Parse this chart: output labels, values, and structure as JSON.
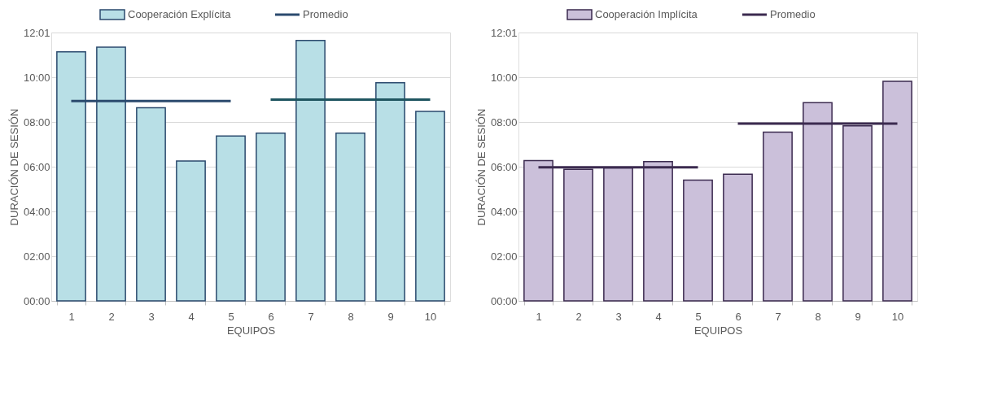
{
  "chart_data": [
    {
      "type": "bar",
      "xlabel": "EQUIPOS",
      "ylabel": "DURACIÓN DE SESIÓN",
      "categories": [
        "1",
        "2",
        "3",
        "4",
        "5",
        "6",
        "7",
        "8",
        "9",
        "10"
      ],
      "series": [
        {
          "name": "Cooperación Explícita",
          "color": "#b8dfe6",
          "values": [
            11.15,
            11.36,
            8.65,
            6.26,
            7.38,
            7.51,
            11.66,
            7.51,
            9.77,
            8.48
          ]
        },
        {
          "name": "Promedio",
          "type": "line",
          "color": "#2b4a6e",
          "values": [
            8.95,
            8.95,
            8.95,
            8.95,
            8.95,
            null,
            null,
            null,
            null,
            null
          ]
        },
        {
          "type": "line",
          "color": "#1f5560",
          "values": [
            null,
            null,
            null,
            null,
            null,
            9.01,
            9.01,
            9.01,
            9.01,
            9.01
          ]
        }
      ],
      "ylim": [
        0,
        12.0167
      ],
      "yticks": [
        {
          "value": 0,
          "label": "00:00"
        },
        {
          "value": 2,
          "label": "02:00"
        },
        {
          "value": 4,
          "label": "04:00"
        },
        {
          "value": 6,
          "label": "06:00"
        },
        {
          "value": 8,
          "label": "08:00"
        },
        {
          "value": 10,
          "label": "10:00"
        },
        {
          "value": 12.0167,
          "label": "12:01"
        }
      ],
      "grid": "y",
      "legend": "top"
    },
    {
      "type": "bar",
      "xlabel": "EQUIPOS",
      "ylabel": "DURACIÓN DE SESIÓN",
      "categories": [
        "1",
        "2",
        "3",
        "4",
        "5",
        "6",
        "7",
        "8",
        "9",
        "10"
      ],
      "series": [
        {
          "name": "Cooperación Implícita",
          "color": "#cbc0da",
          "values": [
            6.28,
            5.89,
            5.95,
            6.24,
            5.41,
            5.67,
            7.56,
            8.88,
            7.84,
            9.83
          ]
        },
        {
          "name": "Promedio",
          "type": "line",
          "color": "#3b2a4f",
          "values": [
            5.98,
            5.98,
            5.98,
            5.98,
            5.98,
            null,
            null,
            null,
            null,
            null
          ]
        },
        {
          "type": "line",
          "color": "#3b2a4f",
          "values": [
            null,
            null,
            null,
            null,
            null,
            7.94,
            7.94,
            7.94,
            7.94,
            7.94
          ]
        }
      ],
      "ylim": [
        0,
        12.0167
      ],
      "yticks": [
        {
          "value": 0,
          "label": "00:00"
        },
        {
          "value": 2,
          "label": "02:00"
        },
        {
          "value": 4,
          "label": "04:00"
        },
        {
          "value": 6,
          "label": "06:00"
        },
        {
          "value": 8,
          "label": "08:00"
        },
        {
          "value": 10,
          "label": "10:00"
        },
        {
          "value": 12.0167,
          "label": "12:01"
        }
      ],
      "grid": "y",
      "legend": "top"
    }
  ]
}
